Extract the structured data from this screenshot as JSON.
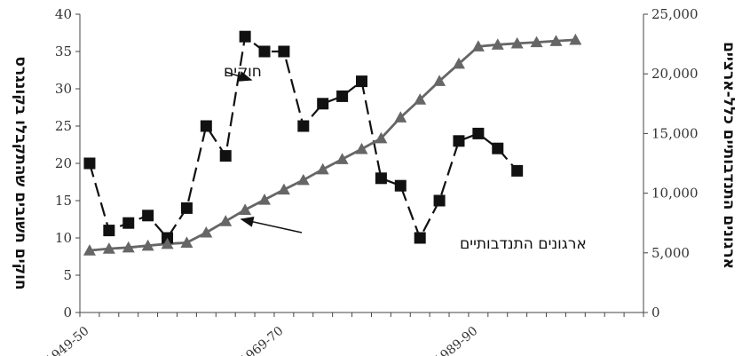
{
  "chart_data": {
    "type": "line",
    "x": [
      "1949-50",
      "1951-52",
      "1953-54",
      "1955-56",
      "1957-58",
      "1959-60",
      "1961-62",
      "1963-64",
      "1965-66",
      "1967-68",
      "1969-70",
      "1971-72",
      "1973-74",
      "1975-76",
      "1977-78",
      "1979-80",
      "1981-82",
      "1983-84",
      "1985-86",
      "1987-88",
      "1989-90",
      "1991-92",
      "1993-94",
      "1995-96",
      "1997-98",
      "1999-2000",
      "2001-02",
      "2003-04",
      "2005-06"
    ],
    "x_tick_labels": [
      {
        "index": 0,
        "label": "1949-50"
      },
      {
        "index": 10,
        "label": "1969-70"
      },
      {
        "index": 20,
        "label": "1989-90"
      }
    ],
    "ylabel_left": "חוקים חשובים שהתקבלו בקונגרס",
    "ylabel_right": "ארגונים התנדבותיים כלל-ארציים",
    "ylim_left": [
      0,
      40
    ],
    "ylim_right": [
      0,
      25000
    ],
    "yticks_left": [
      "0",
      "5",
      "10",
      "15",
      "20",
      "25",
      "30",
      "35",
      "40"
    ],
    "yticks_right": [
      "0",
      "5,000",
      "10,000",
      "15,000",
      "20,000",
      "25,000"
    ],
    "series": [
      {
        "name": "חוקים",
        "axis": "left",
        "marker": "square",
        "line": "dashed",
        "color": "#111111",
        "values": [
          20,
          11,
          12,
          13,
          10,
          14,
          25,
          21,
          37,
          35,
          35,
          25,
          28,
          29,
          31,
          18,
          17,
          10,
          15,
          23,
          24,
          22,
          19,
          null,
          null,
          null,
          null,
          null,
          null
        ]
      },
      {
        "name": "ארגונים התנדבותיים",
        "axis": "right",
        "marker": "triangle",
        "line": "solid",
        "color": "#666666",
        "values": [
          5200,
          5350,
          5450,
          5600,
          5750,
          5850,
          6700,
          7650,
          8600,
          9450,
          10300,
          11100,
          12000,
          12850,
          13700,
          14600,
          16350,
          17850,
          19400,
          20850,
          22300,
          22450,
          22550,
          22650,
          22750,
          22850,
          null,
          null,
          null
        ]
      }
    ],
    "annotations": [
      {
        "text": "חוקים",
        "target_series": 0
      },
      {
        "text": "ארגונים התנדבותיים",
        "target_series": 1
      }
    ],
    "grid": false,
    "legend": "none"
  }
}
